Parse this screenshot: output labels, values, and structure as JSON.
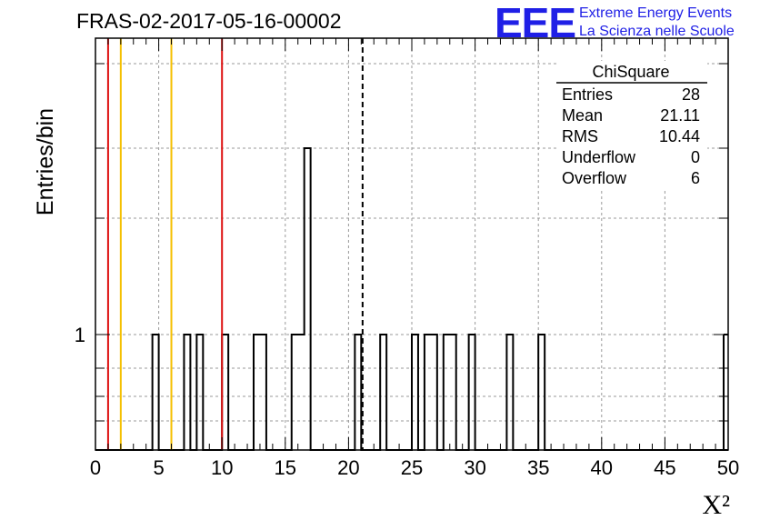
{
  "title": "FRAS-02-2017-05-16-00002",
  "logo": {
    "mark": "EEE",
    "line1": "Extreme Energy Events",
    "line2": "La Scienza nelle Scuole"
  },
  "colors": {
    "logo": "#1f1fe6",
    "red_lines": "#dd1111",
    "yellow_lines": "#f5c000",
    "histogram": "#000000",
    "grid": "#999999"
  },
  "chart_data": {
    "type": "histogram",
    "y_scale": "log",
    "xlabel": "X²",
    "ylabel": "Entries/bin",
    "xlim": [
      0,
      50
    ],
    "x_ticks": [
      "0",
      "5",
      "10",
      "15",
      "20",
      "25",
      "30",
      "35",
      "40",
      "45",
      "50"
    ],
    "y_ticks": [
      "1"
    ],
    "bin_width": 0.5,
    "bins": [
      {
        "x": [
          4.5,
          5.0
        ],
        "count": 1
      },
      {
        "x": [
          7.0,
          7.5
        ],
        "count": 1
      },
      {
        "x": [
          8.0,
          8.5
        ],
        "count": 1
      },
      {
        "x": [
          10.0,
          10.5
        ],
        "count": 1
      },
      {
        "x": [
          12.5,
          13.5
        ],
        "count": 1
      },
      {
        "x": [
          15.5,
          16.5
        ],
        "count": 1
      },
      {
        "x": [
          16.5,
          17.0
        ],
        "count": 2
      },
      {
        "x": [
          20.5,
          21.0
        ],
        "count": 1
      },
      {
        "x": [
          22.5,
          23.0
        ],
        "count": 1
      },
      {
        "x": [
          25.0,
          25.5
        ],
        "count": 1
      },
      {
        "x": [
          26.0,
          27.0
        ],
        "count": 1
      },
      {
        "x": [
          27.5,
          28.5
        ],
        "count": 1
      },
      {
        "x": [
          29.5,
          30.0
        ],
        "count": 1
      },
      {
        "x": [
          32.5,
          33.0
        ],
        "count": 1
      },
      {
        "x": [
          35.0,
          35.5
        ],
        "count": 1
      }
    ],
    "vertical_lines": [
      {
        "x": 1.0,
        "color": "red"
      },
      {
        "x": 2.0,
        "color": "yellow"
      },
      {
        "x": 6.0,
        "color": "yellow"
      },
      {
        "x": 10.0,
        "color": "red"
      },
      {
        "x": 21.11,
        "color": "black",
        "style": "dashed"
      }
    ],
    "stats_box": {
      "name": "ChiSquare",
      "rows": [
        {
          "label": "Entries",
          "value": "28"
        },
        {
          "label": "Mean",
          "value": "21.11"
        },
        {
          "label": "RMS",
          "value": "10.44"
        },
        {
          "label": "Underflow",
          "value": "0"
        },
        {
          "label": "Overflow",
          "value": "6"
        }
      ]
    },
    "grid": true
  }
}
